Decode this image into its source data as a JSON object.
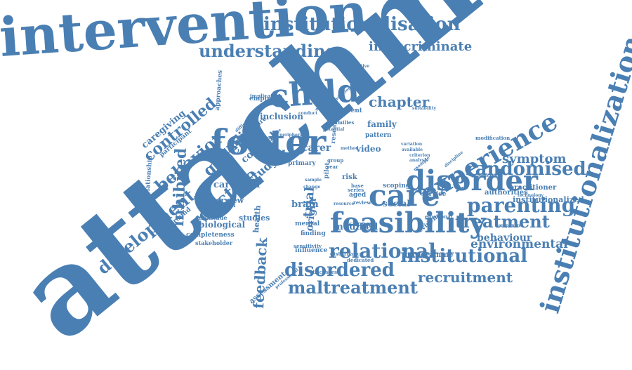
{
  "theme": {
    "word_color": "#4a7fb3",
    "background": "#ffffff"
  },
  "words": [
    {
      "text": "attachment",
      "weight": 100,
      "orientation": "diagonal-up"
    },
    {
      "text": "intervention",
      "weight": 70,
      "orientation": "horizontal"
    },
    {
      "text": "institutionalization",
      "weight": 32,
      "orientation": "vertical-up"
    },
    {
      "text": "feasibility",
      "weight": 34,
      "orientation": "horizontal"
    },
    {
      "text": "foster",
      "weight": 36,
      "orientation": "horizontal"
    },
    {
      "text": "child",
      "weight": 34,
      "orientation": "horizontal"
    },
    {
      "text": "disorder",
      "weight": 30,
      "orientation": "horizontal"
    },
    {
      "text": "care",
      "weight": 32,
      "orientation": "horizontal"
    },
    {
      "text": "experience",
      "weight": 28,
      "orientation": "diagonal-up"
    },
    {
      "text": "institutionalisation",
      "weight": 22,
      "orientation": "horizontal"
    },
    {
      "text": "randomised",
      "weight": 22,
      "orientation": "horizontal"
    },
    {
      "text": "parenting",
      "weight": 22,
      "orientation": "horizontal"
    },
    {
      "text": "relational",
      "weight": 22,
      "orientation": "horizontal"
    },
    {
      "text": "institutional",
      "weight": 22,
      "orientation": "horizontal"
    },
    {
      "text": "disordered",
      "weight": 22,
      "orientation": "horizontal"
    },
    {
      "text": "maltreatment",
      "weight": 20,
      "orientation": "horizontal"
    },
    {
      "text": "development",
      "weight": 20,
      "orientation": "diagonal-up"
    },
    {
      "text": "understanding",
      "weight": 20,
      "orientation": "horizontal"
    },
    {
      "text": "indiscriminate",
      "weight": 14,
      "orientation": "horizontal"
    },
    {
      "text": "treatment",
      "weight": 18,
      "orientation": "horizontal"
    },
    {
      "text": "reactive",
      "weight": 20,
      "orientation": "diagonal-up"
    },
    {
      "text": "behavior",
      "weight": 20,
      "orientation": "diagonal-up"
    },
    {
      "text": "controlled",
      "weight": 18,
      "orientation": "diagonal-up"
    },
    {
      "text": "inhibited",
      "weight": 20,
      "orientation": "vertical-up"
    },
    {
      "text": "recruitment",
      "weight": 16,
      "orientation": "horizontal"
    },
    {
      "text": "environmental",
      "weight": 14,
      "orientation": "horizontal"
    },
    {
      "text": "symptom",
      "weight": 14,
      "orientation": "horizontal"
    },
    {
      "text": "feedback",
      "weight": 16,
      "orientation": "vertical-up"
    },
    {
      "text": "chapter",
      "weight": 14,
      "orientation": "horizontal"
    },
    {
      "text": "genetic",
      "weight": 16,
      "orientation": "diagonal-up"
    },
    {
      "text": "quality",
      "weight": 14,
      "orientation": "diagonal-up"
    },
    {
      "text": "behaviour",
      "weight": 12,
      "orientation": "horizontal"
    },
    {
      "text": "modified",
      "weight": 12,
      "orientation": "horizontal"
    },
    {
      "text": "institutionalized",
      "weight": 11,
      "orientation": "horizontal"
    },
    {
      "text": "caregiver",
      "weight": 11,
      "orientation": "horizontal"
    },
    {
      "text": "caregiving",
      "weight": 11,
      "orientation": "diagonal-up"
    },
    {
      "text": "trial",
      "weight": 14,
      "orientation": "vertical-up"
    },
    {
      "text": "carer",
      "weight": 12,
      "orientation": "horizontal"
    },
    {
      "text": "video",
      "weight": 11,
      "orientation": "horizontal"
    },
    {
      "text": "family",
      "weight": 10,
      "orientation": "horizontal"
    },
    {
      "text": "study",
      "weight": 12,
      "orientation": "diagonal-up"
    },
    {
      "text": "cortisol",
      "weight": 11,
      "orientation": "diagonal-up"
    },
    {
      "text": "origin",
      "weight": 11,
      "orientation": "vertical-up"
    },
    {
      "text": "brain",
      "weight": 10,
      "orientation": "horizontal"
    },
    {
      "text": "social",
      "weight": 9,
      "orientation": "horizontal"
    },
    {
      "text": "biological",
      "weight": 9,
      "orientation": "horizontal"
    },
    {
      "text": "interview",
      "weight": 9,
      "orientation": "horizontal"
    },
    {
      "text": "studies",
      "weight": 9,
      "orientation": "horizontal"
    },
    {
      "text": "health",
      "weight": 9,
      "orientation": "vertical-up"
    },
    {
      "text": "inclusion",
      "weight": 8,
      "orientation": "horizontal"
    },
    {
      "text": "practitioner",
      "weight": 7,
      "orientation": "horizontal"
    },
    {
      "text": "authorities",
      "weight": 7,
      "orientation": "horizontal"
    },
    {
      "text": "programme",
      "weight": 7,
      "orientation": "horizontal"
    },
    {
      "text": "assessment",
      "weight": 7,
      "orientation": "diagonal-up"
    },
    {
      "text": "relationship",
      "weight": 6,
      "orientation": "vertical-up"
    },
    {
      "text": "approaches",
      "weight": 6,
      "orientation": "vertical-up"
    },
    {
      "text": "completeness",
      "weight": 6,
      "orientation": "horizontal"
    },
    {
      "text": "participant",
      "weight": 6,
      "orientation": "diagonal-up"
    },
    {
      "text": "literature",
      "weight": 6,
      "orientation": "diagonal-up"
    },
    {
      "text": "background",
      "weight": 6,
      "orientation": "diagonal-up"
    },
    {
      "text": "stakeholder",
      "weight": 5,
      "orientation": "horizontal"
    },
    {
      "text": "amplitude",
      "weight": 5,
      "orientation": "horizontal"
    },
    {
      "text": "suboptimal",
      "weight": 5,
      "orientation": "horizontal"
    },
    {
      "text": "empirical",
      "weight": 6,
      "orientation": "horizontal"
    },
    {
      "text": "implication",
      "weight": 5,
      "orientation": "horizontal"
    },
    {
      "text": "current",
      "weight": 6,
      "orientation": "horizontal"
    },
    {
      "text": "families",
      "weight": 5,
      "orientation": "horizontal"
    },
    {
      "text": "pattern",
      "weight": 6,
      "orientation": "horizontal"
    },
    {
      "text": "research",
      "weight": 6,
      "orientation": "vertical-up"
    },
    {
      "text": "primary",
      "weight": 6,
      "orientation": "horizontal"
    },
    {
      "text": "mental",
      "weight": 6,
      "orientation": "horizontal"
    },
    {
      "text": "finding",
      "weight": 6,
      "orientation": "horizontal"
    },
    {
      "text": "influence",
      "weight": 6,
      "orientation": "horizontal"
    },
    {
      "text": "sensitivity",
      "weight": 5,
      "orientation": "horizontal"
    },
    {
      "text": "disturbance",
      "weight": 5,
      "orientation": "horizontal"
    },
    {
      "text": "discusses",
      "weight": 5,
      "orientation": "horizontal"
    },
    {
      "text": "dedicated",
      "weight": 5,
      "orientation": "horizontal"
    },
    {
      "text": "support",
      "weight": 6,
      "orientation": "horizontal"
    },
    {
      "text": "evidence",
      "weight": 6,
      "orientation": "diagonal-up"
    },
    {
      "text": "service",
      "weight": 6,
      "orientation": "horizontal"
    },
    {
      "text": "scoping",
      "weight": 6,
      "orientation": "horizontal"
    },
    {
      "text": "review",
      "weight": 5,
      "orientation": "horizontal"
    },
    {
      "text": "aged",
      "weight": 6,
      "orientation": "horizontal"
    },
    {
      "text": "series",
      "weight": 5,
      "orientation": "horizontal"
    },
    {
      "text": "base",
      "weight": 5,
      "orientation": "horizontal"
    },
    {
      "text": "risk",
      "weight": 7,
      "orientation": "horizontal"
    },
    {
      "text": "group",
      "weight": 5,
      "orientation": "horizontal"
    },
    {
      "text": "year",
      "weight": 5,
      "orientation": "horizontal"
    },
    {
      "text": "pilot",
      "weight": 6,
      "orientation": "vertical-up"
    },
    {
      "text": "emotional",
      "weight": 5,
      "orientation": "horizontal"
    },
    {
      "text": "component",
      "weight": 4,
      "orientation": "horizontal"
    },
    {
      "text": "difference",
      "weight": 4,
      "orientation": "horizontal"
    },
    {
      "text": "technology",
      "weight": 4,
      "orientation": "horizontal"
    },
    {
      "text": "modification",
      "weight": 5,
      "orientation": "horizontal"
    },
    {
      "text": "variation",
      "weight": 4,
      "orientation": "horizontal"
    },
    {
      "text": "available",
      "weight": 4,
      "orientation": "horizontal"
    },
    {
      "text": "criterion",
      "weight": 4,
      "orientation": "horizontal"
    },
    {
      "text": "analysis",
      "weight": 4,
      "orientation": "horizontal"
    },
    {
      "text": "suitability",
      "weight": 4,
      "orientation": "horizontal"
    },
    {
      "text": "qualitative",
      "weight": 4,
      "orientation": "horizontal"
    },
    {
      "text": "conduct",
      "weight": 4,
      "orientation": "horizontal"
    },
    {
      "text": "potential",
      "weight": 4,
      "orientation": "horizontal"
    },
    {
      "text": "method",
      "weight": 4,
      "orientation": "horizontal"
    },
    {
      "text": "difficulties",
      "weight": 4,
      "orientation": "diagonal-up"
    },
    {
      "text": "feasible",
      "weight": 4,
      "orientation": "diagonal-up"
    },
    {
      "text": "example",
      "weight": 4,
      "orientation": "diagonal-up"
    },
    {
      "text": "sample",
      "weight": 4,
      "orientation": "horizontal"
    },
    {
      "text": "change",
      "weight": 4,
      "orientation": "horizontal"
    },
    {
      "text": "professional",
      "weight": 4,
      "orientation": "diagonal-up"
    },
    {
      "text": "behavioural",
      "weight": 4,
      "orientation": "vertical-up"
    },
    {
      "text": "additional",
      "weight": 4,
      "orientation": "diagonal-up"
    },
    {
      "text": "resource",
      "weight": 4,
      "orientation": "horizontal"
    },
    {
      "text": "discipline",
      "weight": 4,
      "orientation": "diagonal-up"
    },
    {
      "text": "peripheral",
      "weight": 4,
      "orientation": "horizontal"
    }
  ]
}
